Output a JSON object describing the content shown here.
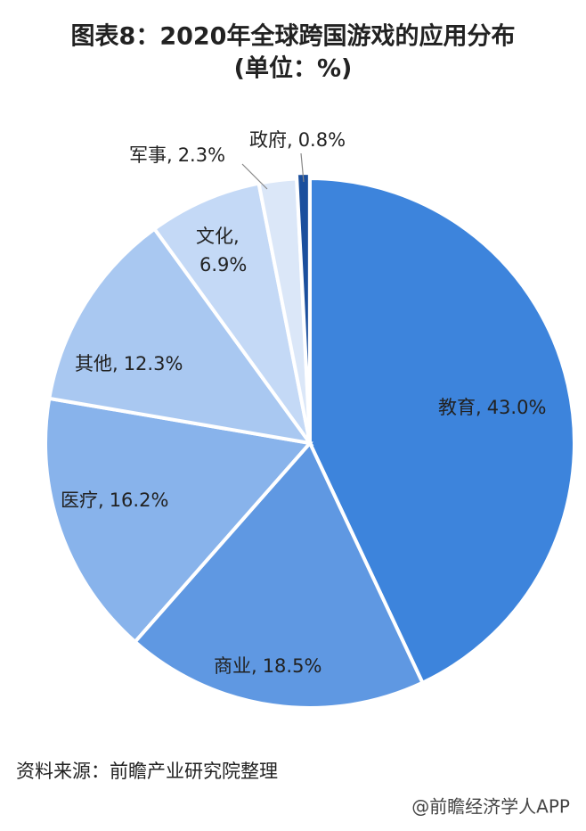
{
  "chart_data": {
    "type": "pie",
    "title": "图表8：2020年全球跨国游戏的应用分布",
    "subtitle": "(单位：%)",
    "categories": [
      "教育",
      "商业",
      "医疗",
      "其他",
      "文化",
      "军事",
      "政府"
    ],
    "values": [
      43.0,
      18.5,
      16.2,
      12.3,
      6.9,
      2.3,
      0.8
    ],
    "value_labels": [
      "43.0%",
      "18.5%",
      "16.2%",
      "12.3%",
      "6.9%",
      "2.3%",
      "0.8%"
    ],
    "label_separator": ",",
    "colors": [
      "#3d84dc",
      "#5f98e2",
      "#88b3eb",
      "#a9c8f1",
      "#c4d9f6",
      "#dbe7f8",
      "#1b4f9d"
    ],
    "source": "资料来源：前瞻产业研究院整理",
    "footer": "@前瞻经济学人APP"
  }
}
